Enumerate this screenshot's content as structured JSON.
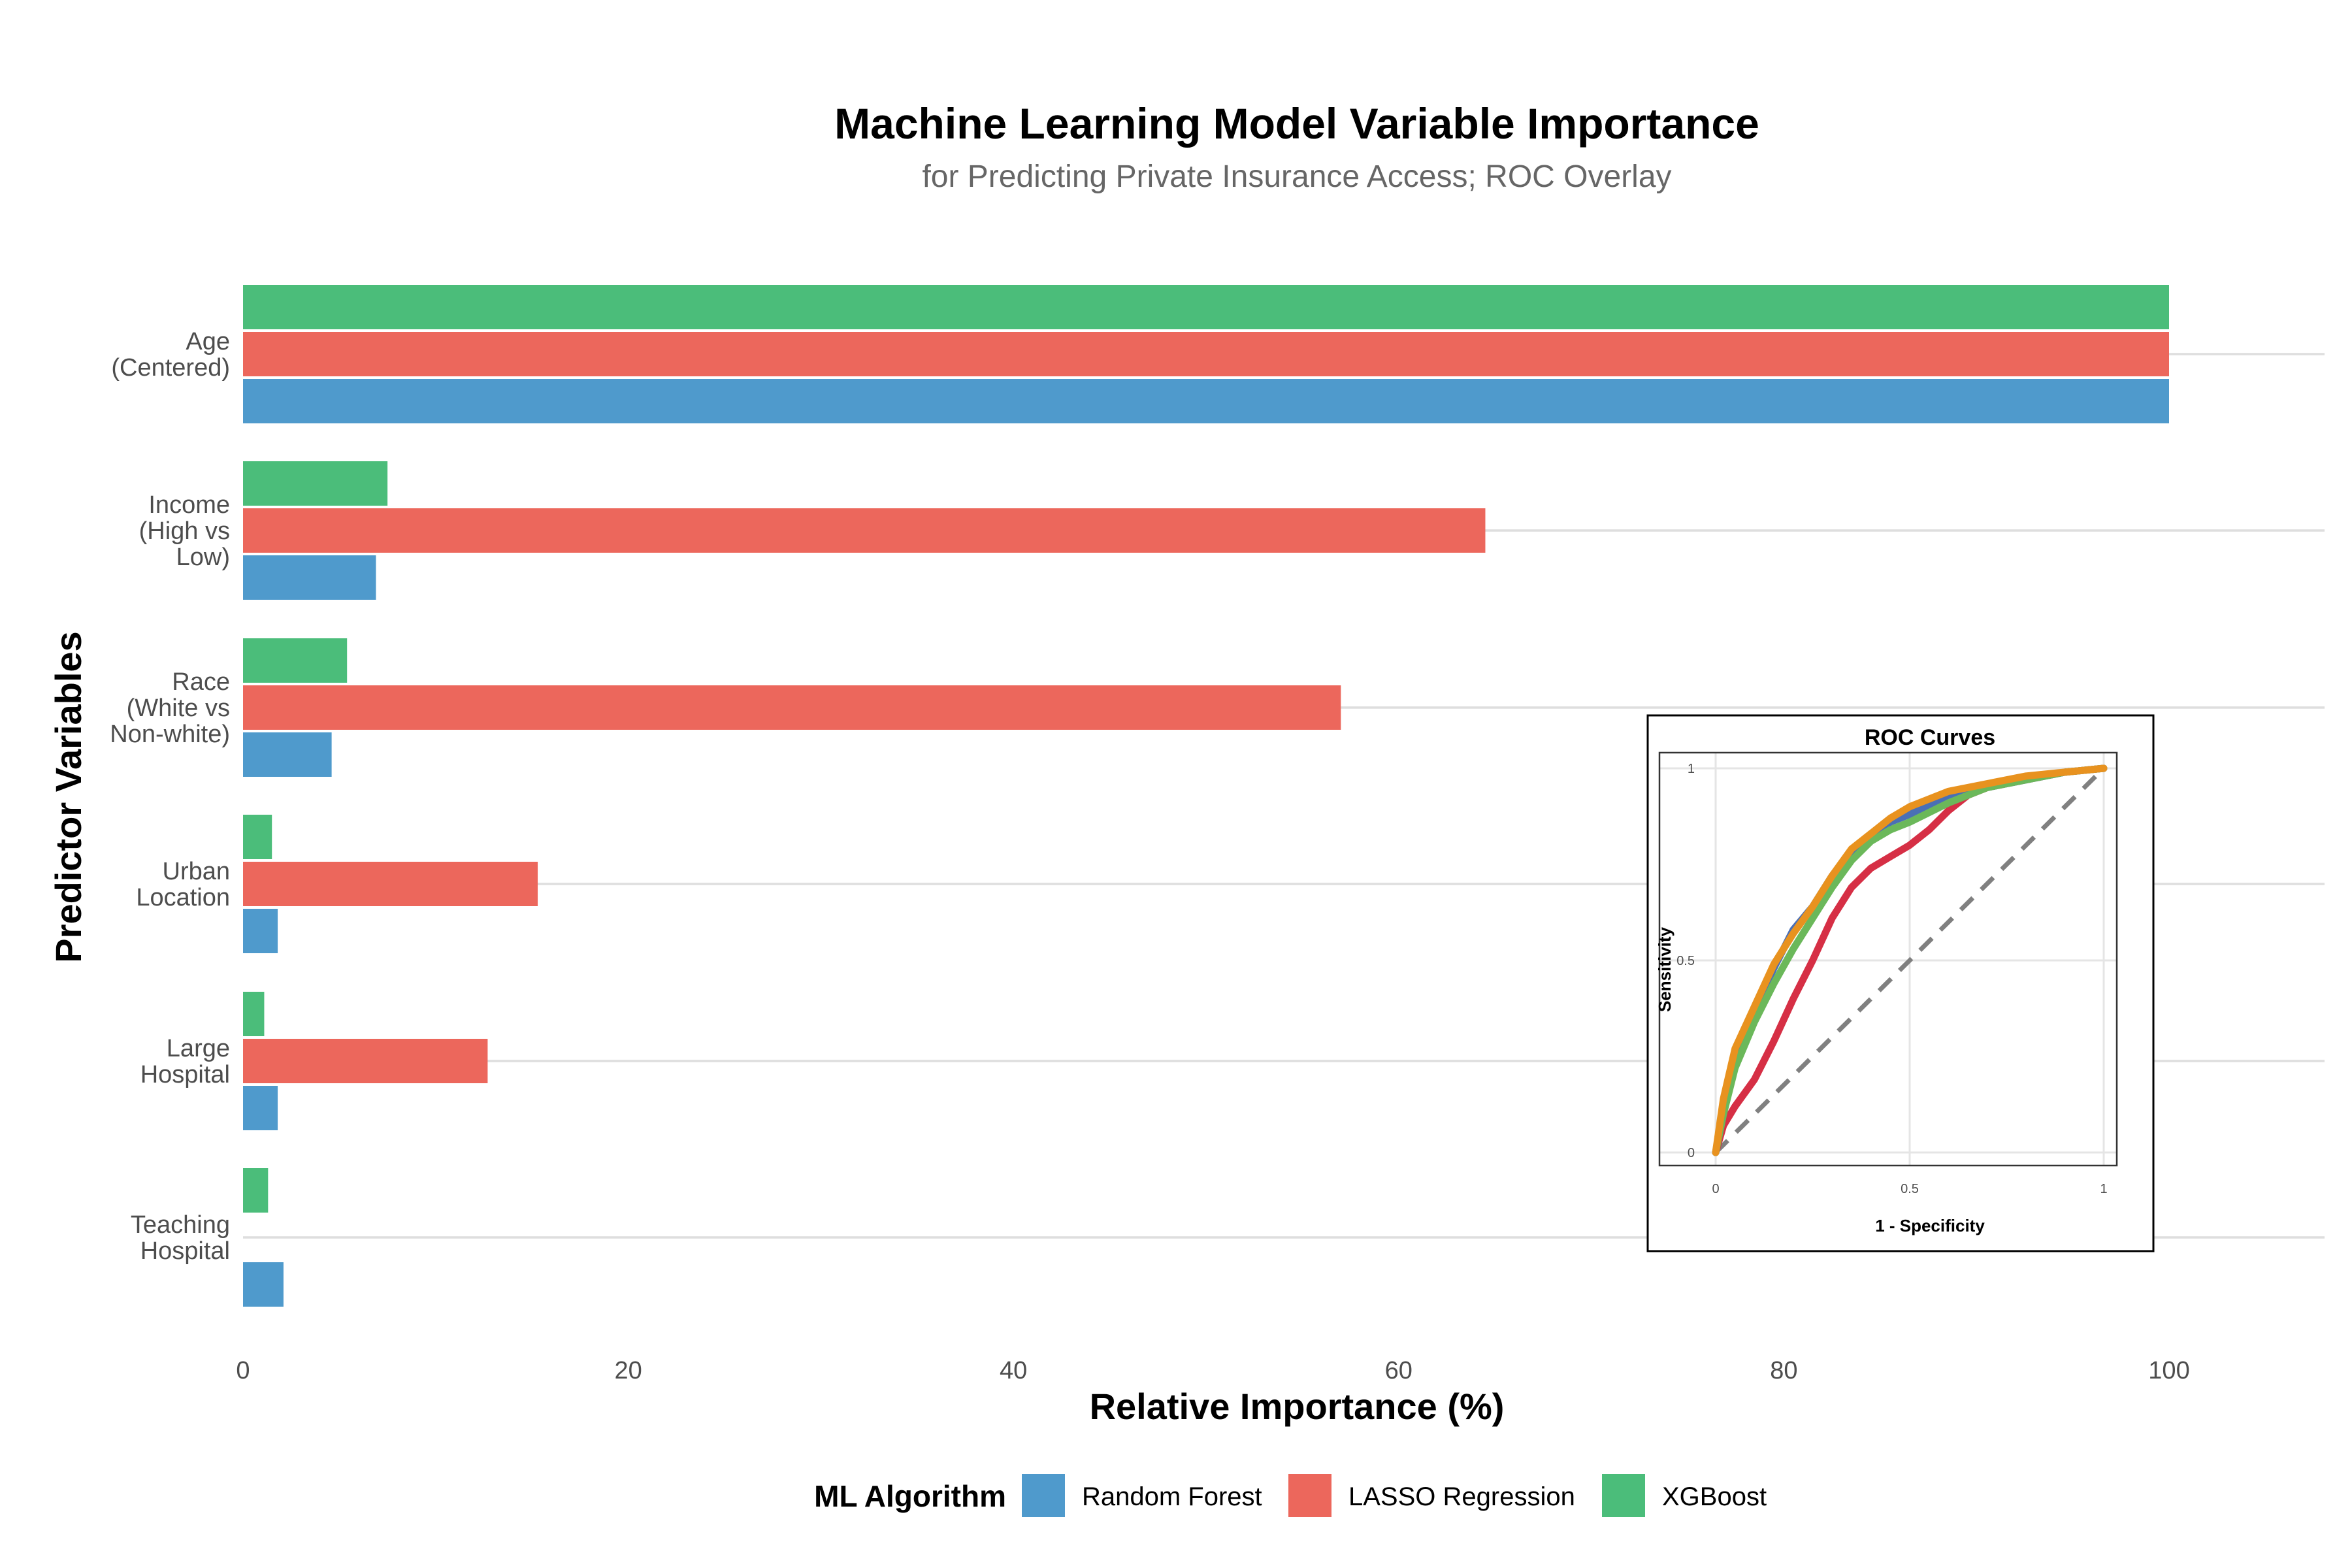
{
  "chart_data": [
    {
      "type": "bar",
      "orientation": "horizontal",
      "title": "Machine Learning Model Variable Importance",
      "subtitle": "for Predicting Private Insurance Access; ROC Overlay",
      "xlabel": "Relative Importance (%)",
      "ylabel": "Predictor Variables",
      "xlim": [
        0,
        108
      ],
      "xticks": [
        0,
        20,
        40,
        60,
        80,
        100
      ],
      "grid": "horizontal major lines",
      "categories": [
        [
          "Age",
          "(Centered)"
        ],
        [
          "Income",
          "(High vs",
          "Low)"
        ],
        [
          "Race",
          "(White vs",
          "Non-white)"
        ],
        [
          "Urban",
          "Location"
        ],
        [
          "Large",
          "Hospital"
        ],
        [
          "Teaching",
          "Hospital"
        ]
      ],
      "series": [
        {
          "name": "Random Forest",
          "color": "#4f9acc",
          "values": [
            100,
            6.9,
            4.6,
            1.8,
            1.8,
            2.1
          ]
        },
        {
          "name": "LASSO Regression",
          "color": "#ec675c",
          "values": [
            100,
            64.5,
            57.0,
            15.3,
            12.7,
            0
          ]
        },
        {
          "name": "XGBoost",
          "color": "#4bbd7a",
          "values": [
            100,
            7.5,
            5.4,
            1.5,
            1.1,
            1.3
          ]
        }
      ],
      "legend": {
        "title": "ML Algorithm",
        "placement": "bottom"
      }
    },
    {
      "type": "line",
      "title": "ROC Curves",
      "xlabel": "1 - Specificity",
      "ylabel": "Sensitivity",
      "xlim": [
        0,
        1
      ],
      "ylim": [
        0,
        1
      ],
      "xticks": [
        "0",
        "0.5",
        "1"
      ],
      "yticks": [
        "0",
        "0.5",
        "1"
      ],
      "reference_line": {
        "x": [
          0,
          1
        ],
        "y": [
          0,
          1
        ],
        "style": "dashed",
        "color": "#808080"
      },
      "series": [
        {
          "color": "#d62f45",
          "x": [
            0,
            0.02,
            0.05,
            0.1,
            0.15,
            0.2,
            0.25,
            0.3,
            0.35,
            0.4,
            0.45,
            0.5,
            0.55,
            0.6,
            0.65,
            0.7,
            0.8,
            0.9,
            1.0
          ],
          "y": [
            0,
            0.07,
            0.12,
            0.19,
            0.29,
            0.4,
            0.5,
            0.61,
            0.69,
            0.74,
            0.77,
            0.8,
            0.84,
            0.89,
            0.93,
            0.95,
            0.97,
            0.99,
            1.0
          ]
        },
        {
          "color": "#4a6fb5",
          "x": [
            0,
            0.02,
            0.05,
            0.1,
            0.15,
            0.2,
            0.25,
            0.3,
            0.35,
            0.4,
            0.45,
            0.5,
            0.6,
            0.7,
            0.8,
            0.9,
            1.0
          ],
          "y": [
            0,
            0.12,
            0.25,
            0.37,
            0.48,
            0.58,
            0.64,
            0.72,
            0.78,
            0.82,
            0.86,
            0.88,
            0.93,
            0.95,
            0.97,
            0.99,
            1.0
          ]
        },
        {
          "color": "#6bb85a",
          "x": [
            0,
            0.02,
            0.05,
            0.1,
            0.15,
            0.2,
            0.25,
            0.3,
            0.35,
            0.4,
            0.45,
            0.5,
            0.6,
            0.7,
            0.8,
            0.9,
            1.0
          ],
          "y": [
            0,
            0.1,
            0.22,
            0.34,
            0.44,
            0.53,
            0.61,
            0.69,
            0.76,
            0.81,
            0.84,
            0.86,
            0.91,
            0.95,
            0.97,
            0.99,
            1.0
          ]
        },
        {
          "color": "#e8921f",
          "x": [
            0,
            0.02,
            0.05,
            0.1,
            0.15,
            0.2,
            0.25,
            0.3,
            0.35,
            0.4,
            0.45,
            0.5,
            0.6,
            0.7,
            0.8,
            0.9,
            1.0
          ],
          "y": [
            0,
            0.14,
            0.27,
            0.38,
            0.49,
            0.57,
            0.64,
            0.72,
            0.79,
            0.83,
            0.87,
            0.9,
            0.94,
            0.96,
            0.98,
            0.99,
            1.0
          ]
        }
      ]
    }
  ]
}
